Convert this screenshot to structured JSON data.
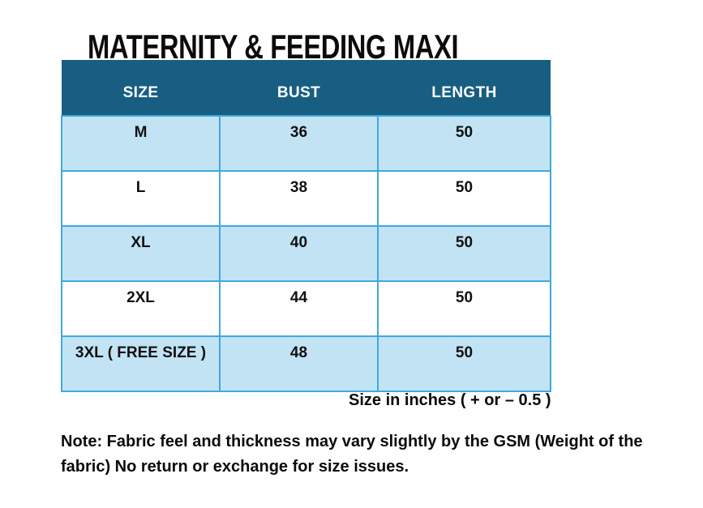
{
  "title": "MATERNITY & FEEDING MAXI",
  "table": {
    "columns": [
      "SIZE",
      "BUST",
      "LENGTH"
    ],
    "rows": [
      {
        "size": "M",
        "bust": "36",
        "length": "50"
      },
      {
        "size": "L",
        "bust": "38",
        "length": "50"
      },
      {
        "size": "XL",
        "bust": "40",
        "length": "50"
      },
      {
        "size": "2XL",
        "bust": "44",
        "length": "50"
      },
      {
        "size": "3XL ( FREE SIZE )",
        "bust": "48",
        "length": "50"
      }
    ]
  },
  "caption": "Size in inches ( + or  – 0.5 )",
  "note": "Note: Fabric feel and thickness may vary slightly by the GSM (Weight of the fabric) No return or exchange for size issues.",
  "colors": {
    "header_bg": "#175E82",
    "header_text": "#FFFFFF",
    "row_alt_bg": "#C2E3F4",
    "border": "#41A8DC",
    "text": "#111111"
  }
}
